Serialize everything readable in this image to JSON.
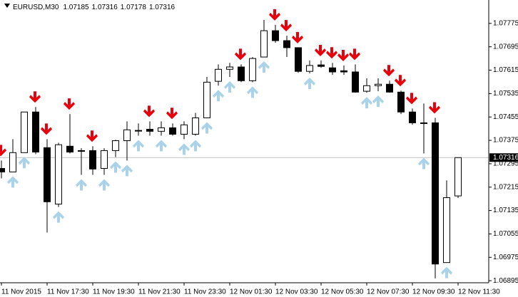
{
  "chart_data": {
    "type": "candlestick",
    "title": "EURUSD,M30",
    "header_values": [
      1.07185,
      1.07316,
      1.07178,
      1.07316
    ],
    "current_price": 1.07316,
    "categories": [
      "11 Nov 2015",
      null,
      null,
      null,
      "11 Nov 17:30",
      null,
      null,
      null,
      "11 Nov 19:30",
      null,
      null,
      null,
      "11 Nov 21:30",
      null,
      null,
      null,
      "11 Nov 23:30",
      null,
      null,
      null,
      "12 Nov 01:30",
      null,
      null,
      null,
      "12 Nov 03:30",
      null,
      null,
      null,
      "12 Nov 05:30",
      null,
      null,
      null,
      "12 Nov 07:30",
      null,
      null,
      null,
      "12 Nov 09:30",
      null,
      null,
      null,
      "12 Nov 11:30"
    ],
    "open": [
      1.07279,
      1.07267,
      1.07333,
      1.07472,
      1.0735,
      1.07157,
      1.07355,
      1.0734,
      1.0734,
      1.07279,
      1.0734,
      1.07374,
      1.07409,
      1.07413,
      1.07406,
      1.07418,
      1.07396,
      1.07396,
      1.07452,
      1.07577,
      1.07618,
      1.07626,
      1.07579,
      1.0766,
      1.0775,
      1.07716,
      1.07692,
      1.07611,
      1.07633,
      1.07623,
      1.07613,
      1.07609,
      1.07543,
      1.07562,
      1.07567,
      1.0754,
      1.07472,
      1.07435,
      1.07435,
      1.06957,
      1.07185
    ],
    "high": [
      1.07306,
      1.07379,
      1.07472,
      1.07489,
      1.07379,
      1.07367,
      1.07465,
      1.07348,
      1.07355,
      1.07348,
      1.07377,
      1.0744,
      1.07433,
      1.0744,
      1.0744,
      1.07433,
      1.0744,
      1.07469,
      1.07592,
      1.07635,
      1.0764,
      1.07635,
      1.0766,
      1.07787,
      1.0777,
      1.07733,
      1.07692,
      1.07648,
      1.07648,
      1.0764,
      1.07631,
      1.07635,
      1.07587,
      1.07587,
      1.07579,
      1.07545,
      1.07484,
      1.07501,
      1.07452,
      1.07238,
      1.07316
    ],
    "low": [
      1.07245,
      1.07267,
      1.07333,
      1.07328,
      1.0706,
      1.07147,
      1.0733,
      1.07257,
      1.07257,
      1.07257,
      1.07318,
      1.07306,
      1.07391,
      1.07391,
      1.07391,
      1.07391,
      1.07379,
      1.07391,
      1.07452,
      1.07562,
      1.07592,
      1.07574,
      1.07574,
      1.0766,
      1.07709,
      1.0766,
      1.07606,
      1.07604,
      1.07623,
      1.07599,
      1.07599,
      1.07538,
      1.07538,
      1.07543,
      1.07538,
      1.07465,
      1.07428,
      1.0733,
      1.06903,
      1.06957,
      1.07178
    ],
    "close": [
      1.07267,
      1.07333,
      1.07472,
      1.07335,
      1.07165,
      1.0736,
      1.07335,
      1.0734,
      1.07277,
      1.0734,
      1.07374,
      1.07411,
      1.07408,
      1.07406,
      1.07418,
      1.07396,
      1.07428,
      1.07452,
      1.07574,
      1.07618,
      1.07626,
      1.07579,
      1.07655,
      1.0775,
      1.07716,
      1.07692,
      1.07611,
      1.07631,
      1.07628,
      1.07609,
      1.07609,
      1.0754,
      1.07562,
      1.07567,
      1.0754,
      1.07472,
      1.07435,
      1.07435,
      1.06952,
      1.07179,
      1.07316
    ],
    "signals": [
      "down",
      "up",
      "up",
      "down",
      "down",
      "up",
      "down",
      "up",
      "down",
      "up",
      "up",
      "up",
      "up",
      "down",
      "up",
      "down",
      "up",
      "up",
      "up",
      "up",
      "up",
      "down",
      "up",
      "up",
      "down",
      "down",
      "down",
      "up",
      "down",
      "down",
      "down",
      "down",
      "up",
      "up",
      "down",
      "down",
      "down",
      "up",
      "down",
      "up",
      null
    ],
    "bull_color": "#ffffff",
    "bear_color": "#000000",
    "up_signal_color": "#a9d3e8",
    "down_signal_color": "#e8000b",
    "ylim": [
      1.06888,
      1.07855
    ],
    "yticks": [
      1.06895,
      1.06975,
      1.07055,
      1.07135,
      1.07215,
      1.07295,
      1.07375,
      1.07455,
      1.07535,
      1.07615,
      1.07695,
      1.07775
    ]
  }
}
